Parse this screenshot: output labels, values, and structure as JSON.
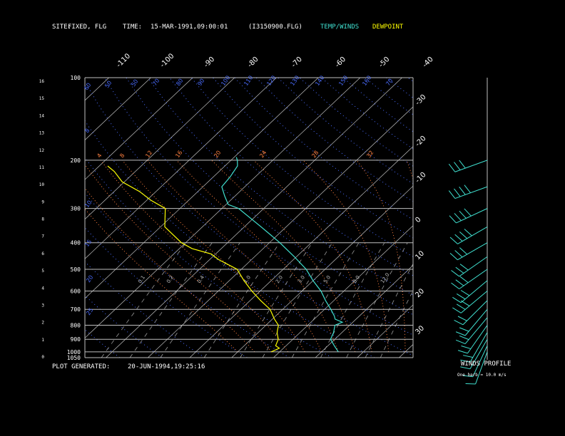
{
  "header": {
    "site_label": "SITE:",
    "site_value": "FIXED, FLG",
    "time_label": "TIME:",
    "time_value": "15-MAR-1991,09:00:01",
    "file": "(I3150900.FLG)",
    "legend_temp_winds": "TEMP/WINDS",
    "legend_dewpoint": "DEWPOINT"
  },
  "footer": {
    "generated_label": "PLOT GENERATED:",
    "generated_value": "20-JUN-1994,19:25:16"
  },
  "winds_profile": {
    "title": "WINDS PROFILE",
    "note": "One barb = 10.0 m/s"
  },
  "colors": {
    "background": "#000000",
    "grid": "#c0c0c0",
    "temperature": "#40e0d0",
    "dewpoint": "#ffff00",
    "dry_adiabat": "#4a6cff",
    "moist_adiabat": "#ff8040",
    "mixing_ratio": "#c0c0c0",
    "labels": "#ffffff"
  },
  "chart_data": {
    "type": "line",
    "subtype": "skew-t log-p diagram",
    "y_axis": "pressure (mb), log scale, top 100 to bottom 1050",
    "pressure_labels": [
      100,
      200,
      300,
      400,
      500,
      600,
      700,
      800,
      900,
      1000,
      1050
    ],
    "height_labels": [
      "16",
      "15",
      "14",
      "13",
      "12",
      "11",
      "10",
      "9",
      "8",
      "7",
      "6",
      "5",
      "4",
      "3",
      "2",
      "1",
      "0"
    ],
    "top_temp_labels": [
      "-110",
      "-100",
      "-90",
      "-80",
      "-70",
      "-60",
      "-50",
      "-40"
    ],
    "right_temp_labels": [
      "-30",
      "-20",
      "-10",
      "0",
      "10",
      "20",
      "30"
    ],
    "dry_adiabat_labels": [
      "60",
      "50",
      "50",
      "70",
      "80",
      "90",
      "100",
      "110",
      "120",
      "130",
      "140",
      "150",
      "160",
      "70",
      "8",
      "10",
      "15",
      "20",
      "25"
    ],
    "moist_adiabat_labels": [
      "4",
      "8",
      "12",
      "16",
      "20",
      "24",
      "28",
      "32"
    ],
    "mixing_ratio_labels": [
      "0.1",
      "0.2",
      "0.4",
      "1.0",
      "2.0",
      "3.0",
      "5.0",
      "8.0",
      "12.0"
    ],
    "grid": true,
    "series": [
      {
        "name": "TEMP/WINDS",
        "color": "#40e0d0",
        "points": [
          {
            "p": 1000,
            "t": 14.0
          },
          {
            "p": 950,
            "t": 11.5
          },
          {
            "p": 900,
            "t": 9.0
          },
          {
            "p": 850,
            "t": 8.0
          },
          {
            "p": 800,
            "t": 6.5
          },
          {
            "p": 780,
            "t": 7.5
          },
          {
            "p": 760,
            "t": 5.0
          },
          {
            "p": 740,
            "t": 4.0
          },
          {
            "p": 700,
            "t": 1.5
          },
          {
            "p": 650,
            "t": -2.0
          },
          {
            "p": 600,
            "t": -5.5
          },
          {
            "p": 550,
            "t": -10.0
          },
          {
            "p": 500,
            "t": -14.5
          },
          {
            "p": 450,
            "t": -20.5
          },
          {
            "p": 400,
            "t": -27.5
          },
          {
            "p": 350,
            "t": -36.0
          },
          {
            "p": 300,
            "t": -46.0
          },
          {
            "p": 290,
            "t": -49.5
          },
          {
            "p": 270,
            "t": -52.5
          },
          {
            "p": 250,
            "t": -55.5
          },
          {
            "p": 230,
            "t": -56.0
          },
          {
            "p": 210,
            "t": -57.0
          },
          {
            "p": 200,
            "t": -58.5
          },
          {
            "p": 195,
            "t": -59.5
          }
        ]
      },
      {
        "name": "DEWPOINT",
        "color": "#ffff00",
        "points": [
          {
            "p": 1000,
            "t": -2.0
          },
          {
            "p": 970,
            "t": -1.0
          },
          {
            "p": 950,
            "t": -2.5
          },
          {
            "p": 900,
            "t": -3.5
          },
          {
            "p": 850,
            "t": -5.5
          },
          {
            "p": 800,
            "t": -7.0
          },
          {
            "p": 760,
            "t": -9.5
          },
          {
            "p": 700,
            "t": -13.0
          },
          {
            "p": 650,
            "t": -17.5
          },
          {
            "p": 600,
            "t": -22.0
          },
          {
            "p": 550,
            "t": -26.5
          },
          {
            "p": 500,
            "t": -31.0
          },
          {
            "p": 460,
            "t": -38.0
          },
          {
            "p": 440,
            "t": -41.0
          },
          {
            "p": 420,
            "t": -47.0
          },
          {
            "p": 400,
            "t": -51.0
          },
          {
            "p": 350,
            "t": -59.0
          },
          {
            "p": 300,
            "t": -63.5
          },
          {
            "p": 280,
            "t": -69.0
          },
          {
            "p": 260,
            "t": -74.0
          },
          {
            "p": 240,
            "t": -80.5
          },
          {
            "p": 220,
            "t": -85.0
          },
          {
            "p": 210,
            "t": -88.0
          }
        ]
      }
    ],
    "wind_profile": [
      {
        "p": 1000,
        "dir": 200,
        "spd": 10
      },
      {
        "p": 950,
        "dir": 205,
        "spd": 12
      },
      {
        "p": 900,
        "dir": 210,
        "spd": 14
      },
      {
        "p": 850,
        "dir": 210,
        "spd": 16
      },
      {
        "p": 800,
        "dir": 215,
        "spd": 18
      },
      {
        "p": 750,
        "dir": 220,
        "spd": 20
      },
      {
        "p": 700,
        "dir": 220,
        "spd": 22
      },
      {
        "p": 650,
        "dir": 225,
        "spd": 24
      },
      {
        "p": 600,
        "dir": 230,
        "spd": 26
      },
      {
        "p": 550,
        "dir": 230,
        "spd": 28
      },
      {
        "p": 500,
        "dir": 235,
        "spd": 30
      },
      {
        "p": 450,
        "dir": 235,
        "spd": 32
      },
      {
        "p": 400,
        "dir": 240,
        "spd": 34
      },
      {
        "p": 350,
        "dir": 240,
        "spd": 36
      },
      {
        "p": 300,
        "dir": 245,
        "spd": 38
      },
      {
        "p": 250,
        "dir": 250,
        "spd": 36
      },
      {
        "p": 200,
        "dir": 250,
        "spd": 30
      }
    ]
  }
}
